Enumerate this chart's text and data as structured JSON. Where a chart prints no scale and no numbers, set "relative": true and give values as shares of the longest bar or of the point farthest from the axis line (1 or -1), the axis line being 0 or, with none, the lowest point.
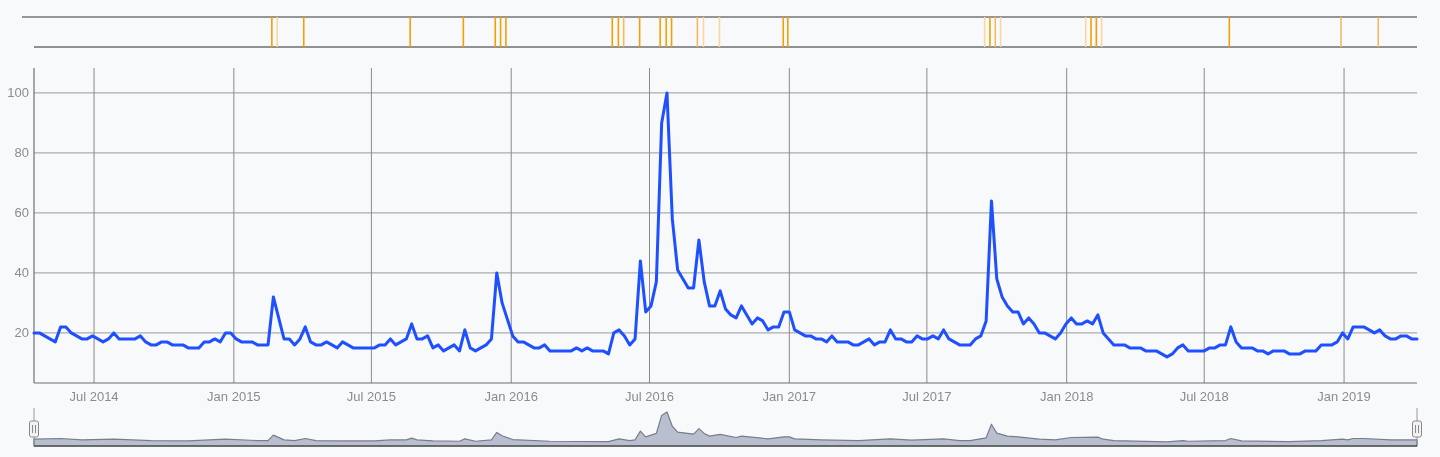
{
  "chart_data": [
    {
      "type": "bar",
      "relative": true,
      "xlim": [
        "2014-04-13",
        "2019-04-07"
      ],
      "x": [
        "2015-02-20",
        "2015-02-27",
        "2015-04-03",
        "2015-08-21",
        "2015-10-30",
        "2015-12-11",
        "2015-12-18",
        "2015-12-25",
        "2016-05-13",
        "2016-05-21",
        "2016-05-28",
        "2016-06-18",
        "2016-07-15",
        "2016-07-23",
        "2016-07-30",
        "2016-09-02",
        "2016-09-10",
        "2016-10-01",
        "2016-12-24",
        "2016-12-30",
        "2017-09-15",
        "2017-09-22",
        "2017-09-29",
        "2017-10-06",
        "2018-01-26",
        "2018-02-02",
        "2018-02-09",
        "2018-02-16",
        "2018-08-03",
        "2018-12-28",
        "2019-02-15"
      ],
      "values": [
        1,
        1,
        1,
        1,
        1,
        1,
        1,
        1,
        1,
        1,
        1,
        1,
        1,
        1,
        1,
        1,
        1,
        1,
        1,
        1,
        1,
        1,
        1,
        1,
        1,
        1,
        1,
        1,
        1,
        1,
        1
      ],
      "colors": [
        "#f5a000",
        "#fbd6a3",
        "#f5a000",
        "#f5a000",
        "#f5a000",
        "#f5a000",
        "#f5a000",
        "#f5a000",
        "#f5a000",
        "#f5a000",
        "#f8b860",
        "#f5a000",
        "#f5a000",
        "#f5a000",
        "#f5a000",
        "#f8b860",
        "#fbd6a3",
        "#fbd6a3",
        "#f5a000",
        "#f5a000",
        "#fbd6a3",
        "#f5a000",
        "#f8b860",
        "#fbd6a3",
        "#fbd6a3",
        "#f5a000",
        "#f5a000",
        "#fbd6a3",
        "#f5a000",
        "#f8b860",
        "#f8b860"
      ]
    },
    {
      "type": "line",
      "xlim": [
        "2014-04-13",
        "2019-04-07"
      ],
      "ylim": [
        3.3,
        108.3
      ],
      "xticks": [
        {
          "value": "2014-07-01",
          "label": "Jul 2014"
        },
        {
          "value": "2015-01-01",
          "label": "Jan 2015"
        },
        {
          "value": "2015-07-01",
          "label": "Jul 2015"
        },
        {
          "value": "2016-01-01",
          "label": "Jan 2016"
        },
        {
          "value": "2016-07-01",
          "label": "Jul 2016"
        },
        {
          "value": "2017-01-01",
          "label": "Jan 2017"
        },
        {
          "value": "2017-07-01",
          "label": "Jul 2017"
        },
        {
          "value": "2018-01-01",
          "label": "Jan 2018"
        },
        {
          "value": "2018-07-01",
          "label": "Jul 2018"
        },
        {
          "value": "2019-01-01",
          "label": "Jan 2019"
        }
      ],
      "yticks": [
        20,
        40,
        60,
        80,
        100
      ],
      "grid": true,
      "x": [
        "2014-04-13",
        "2014-04-20",
        "2014-05-11",
        "2014-05-18",
        "2014-05-25",
        "2014-06-01",
        "2014-06-15",
        "2014-06-22",
        "2014-06-29",
        "2014-07-13",
        "2014-07-20",
        "2014-07-27",
        "2014-08-03",
        "2014-08-24",
        "2014-08-31",
        "2014-09-07",
        "2014-09-14",
        "2014-09-21",
        "2014-09-28",
        "2014-10-05",
        "2014-10-12",
        "2014-10-26",
        "2014-11-02",
        "2014-11-16",
        "2014-11-23",
        "2014-11-30",
        "2014-12-07",
        "2014-12-14",
        "2014-12-21",
        "2014-12-28",
        "2015-01-04",
        "2015-01-11",
        "2015-01-25",
        "2015-02-01",
        "2015-02-15",
        "2015-02-22",
        "2015-03-08",
        "2015-03-15",
        "2015-03-22",
        "2015-03-29",
        "2015-04-05",
        "2015-04-12",
        "2015-04-19",
        "2015-04-26",
        "2015-05-03",
        "2015-05-17",
        "2015-05-24",
        "2015-06-07",
        "2015-07-05",
        "2015-07-12",
        "2015-07-19",
        "2015-07-26",
        "2015-08-02",
        "2015-08-16",
        "2015-08-23",
        "2015-08-30",
        "2015-09-06",
        "2015-09-13",
        "2015-09-20",
        "2015-09-27",
        "2015-10-04",
        "2015-10-18",
        "2015-10-25",
        "2015-11-01",
        "2015-11-08",
        "2015-11-15",
        "2015-11-29",
        "2015-12-06",
        "2015-12-13",
        "2015-12-20",
        "2016-01-03",
        "2016-01-10",
        "2016-01-17",
        "2016-01-31",
        "2016-02-07",
        "2016-02-14",
        "2016-02-21",
        "2016-03-20",
        "2016-03-27",
        "2016-04-03",
        "2016-04-10",
        "2016-04-17",
        "2016-05-01",
        "2016-05-08",
        "2016-05-15",
        "2016-05-22",
        "2016-05-29",
        "2016-06-05",
        "2016-06-12",
        "2016-06-19",
        "2016-06-26",
        "2016-07-03",
        "2016-07-10",
        "2016-07-17",
        "2016-07-24",
        "2016-07-31",
        "2016-08-07",
        "2016-08-21",
        "2016-08-28",
        "2016-09-04",
        "2016-09-11",
        "2016-09-18",
        "2016-09-25",
        "2016-10-02",
        "2016-10-09",
        "2016-10-16",
        "2016-10-23",
        "2016-10-30",
        "2016-11-06",
        "2016-11-13",
        "2016-11-20",
        "2016-11-27",
        "2016-12-04",
        "2016-12-11",
        "2016-12-18",
        "2016-12-25",
        "2017-01-01",
        "2017-01-08",
        "2017-01-15",
        "2017-01-22",
        "2017-01-29",
        "2017-02-05",
        "2017-02-12",
        "2017-02-19",
        "2017-02-26",
        "2017-03-05",
        "2017-03-19",
        "2017-03-26",
        "2017-04-02",
        "2017-04-16",
        "2017-04-23",
        "2017-04-30",
        "2017-05-07",
        "2017-05-14",
        "2017-05-21",
        "2017-05-28",
        "2017-06-04",
        "2017-06-11",
        "2017-06-18",
        "2017-06-25",
        "2017-07-02",
        "2017-07-09",
        "2017-07-16",
        "2017-07-23",
        "2017-07-30",
        "2017-08-06",
        "2017-08-13",
        "2017-08-27",
        "2017-09-03",
        "2017-09-10",
        "2017-09-17",
        "2017-09-24",
        "2017-10-01",
        "2017-10-08",
        "2017-10-15",
        "2017-10-22",
        "2017-10-29",
        "2017-11-05",
        "2017-11-12",
        "2017-11-19",
        "2017-11-26",
        "2017-12-03",
        "2017-12-17",
        "2017-12-24",
        "2017-12-31",
        "2018-01-07",
        "2018-01-14",
        "2018-01-21",
        "2018-01-28",
        "2018-02-04",
        "2018-02-11",
        "2018-02-18",
        "2018-03-04",
        "2018-03-18",
        "2018-03-25",
        "2018-04-08",
        "2018-04-15",
        "2018-04-29",
        "2018-05-13",
        "2018-05-20",
        "2018-05-27",
        "2018-06-03",
        "2018-06-10",
        "2018-07-01",
        "2018-07-08",
        "2018-07-15",
        "2018-07-22",
        "2018-07-29",
        "2018-08-05",
        "2018-08-12",
        "2018-08-19",
        "2018-09-02",
        "2018-09-09",
        "2018-09-16",
        "2018-09-23",
        "2018-09-30",
        "2018-10-14",
        "2018-10-21",
        "2018-11-04",
        "2018-11-11",
        "2018-11-25",
        "2018-12-02",
        "2018-12-16",
        "2018-12-23",
        "2018-12-30",
        "2019-01-06",
        "2019-01-13",
        "2019-01-27",
        "2019-02-03",
        "2019-02-10",
        "2019-02-17",
        "2019-02-24",
        "2019-03-03",
        "2019-03-10",
        "2019-03-17",
        "2019-03-24",
        "2019-03-31",
        "2019-04-07"
      ],
      "series": [
        {
          "color": "#1e50ff",
          "values": [
            20,
            20,
            17,
            22,
            22,
            20,
            18,
            18,
            19,
            17,
            18,
            20,
            18,
            18,
            19,
            17,
            16,
            16,
            17,
            17,
            16,
            16,
            15,
            15,
            17,
            17,
            18,
            17,
            20,
            20,
            18,
            17,
            17,
            16,
            16,
            32,
            18,
            18,
            16,
            18,
            22,
            17,
            16,
            16,
            17,
            15,
            17,
            15,
            15,
            16,
            16,
            18,
            16,
            18,
            23,
            18,
            18,
            19,
            15,
            16,
            14,
            16,
            14,
            21,
            15,
            14,
            16,
            18,
            40,
            30,
            19,
            17,
            17,
            15,
            15,
            16,
            14,
            14,
            15,
            14,
            15,
            14,
            14,
            13,
            20,
            21,
            19,
            16,
            18,
            44,
            27,
            29,
            37,
            90,
            100,
            58,
            41,
            35,
            35,
            51,
            37,
            29,
            29,
            34,
            28,
            26,
            25,
            29,
            26,
            23,
            25,
            24,
            21,
            22,
            22,
            27,
            27,
            21,
            20,
            19,
            19,
            18,
            18,
            17,
            19,
            17,
            17,
            16,
            16,
            18,
            16,
            17,
            17,
            21,
            18,
            18,
            17,
            17,
            19,
            18,
            18,
            19,
            18,
            21,
            18,
            17,
            16,
            16,
            18,
            19,
            24,
            64,
            38,
            32,
            29,
            27,
            27,
            23,
            25,
            23,
            20,
            20,
            18,
            20,
            23,
            25,
            23,
            23,
            24,
            23,
            26,
            20,
            16,
            16,
            15,
            15,
            14,
            14,
            12,
            13,
            15,
            16,
            14,
            14,
            15,
            15,
            16,
            16,
            22,
            17,
            15,
            15,
            14,
            14,
            13,
            14,
            14,
            13,
            13,
            14,
            14,
            16,
            16,
            17,
            20,
            18,
            22,
            22,
            21,
            20,
            21,
            19,
            18,
            18,
            19,
            19,
            18,
            18
          ]
        }
      ]
    },
    {
      "type": "area",
      "relative": true,
      "xlim": [
        "2014-04-13",
        "2019-04-07"
      ],
      "x": [
        "2014-04-13",
        "2014-05-18",
        "2014-06-15",
        "2014-07-27",
        "2014-09-14",
        "2014-11-02",
        "2014-12-21",
        "2015-02-01",
        "2015-02-15",
        "2015-02-22",
        "2015-03-08",
        "2015-03-22",
        "2015-04-05",
        "2015-04-19",
        "2015-05-17",
        "2015-07-05",
        "2015-07-26",
        "2015-08-16",
        "2015-08-23",
        "2015-08-30",
        "2015-09-20",
        "2015-10-25",
        "2015-11-01",
        "2015-11-15",
        "2015-12-06",
        "2015-12-13",
        "2015-12-20",
        "2016-01-03",
        "2016-02-21",
        "2016-05-08",
        "2016-05-22",
        "2016-06-05",
        "2016-06-12",
        "2016-06-19",
        "2016-06-26",
        "2016-07-10",
        "2016-07-17",
        "2016-07-24",
        "2016-07-31",
        "2016-08-07",
        "2016-08-28",
        "2016-09-04",
        "2016-09-11",
        "2016-09-18",
        "2016-10-02",
        "2016-10-23",
        "2016-10-30",
        "2016-12-04",
        "2016-12-25",
        "2017-01-01",
        "2017-01-08",
        "2017-02-12",
        "2017-04-02",
        "2017-05-14",
        "2017-06-11",
        "2017-07-23",
        "2017-08-13",
        "2017-08-27",
        "2017-09-17",
        "2017-09-24",
        "2017-10-01",
        "2017-10-15",
        "2017-10-29",
        "2017-11-26",
        "2017-12-17",
        "2018-01-07",
        "2018-02-11",
        "2018-02-18",
        "2018-03-04",
        "2018-05-13",
        "2018-06-03",
        "2018-06-10",
        "2018-07-29",
        "2018-08-05",
        "2018-08-19",
        "2018-10-21",
        "2018-12-02",
        "2018-12-30",
        "2019-01-06",
        "2019-01-13",
        "2019-01-27",
        "2019-03-03",
        "2019-04-07"
      ],
      "series": [
        {
          "color": "#9ea6bb",
          "values": [
            0.2,
            0.22,
            0.18,
            0.2,
            0.16,
            0.15,
            0.2,
            0.16,
            0.16,
            0.32,
            0.18,
            0.16,
            0.22,
            0.16,
            0.15,
            0.15,
            0.18,
            0.18,
            0.23,
            0.18,
            0.15,
            0.14,
            0.21,
            0.14,
            0.18,
            0.4,
            0.3,
            0.19,
            0.14,
            0.13,
            0.21,
            0.16,
            0.18,
            0.44,
            0.27,
            0.37,
            0.9,
            1,
            0.58,
            0.41,
            0.35,
            0.51,
            0.37,
            0.29,
            0.34,
            0.25,
            0.29,
            0.21,
            0.27,
            0.27,
            0.21,
            0.18,
            0.16,
            0.21,
            0.17,
            0.21,
            0.16,
            0.16,
            0.24,
            0.64,
            0.38,
            0.29,
            0.27,
            0.2,
            0.18,
            0.25,
            0.26,
            0.2,
            0.16,
            0.12,
            0.16,
            0.14,
            0.16,
            0.22,
            0.15,
            0.13,
            0.16,
            0.2,
            0.18,
            0.22,
            0.22,
            0.18,
            0.18
          ]
        }
      ]
    }
  ]
}
